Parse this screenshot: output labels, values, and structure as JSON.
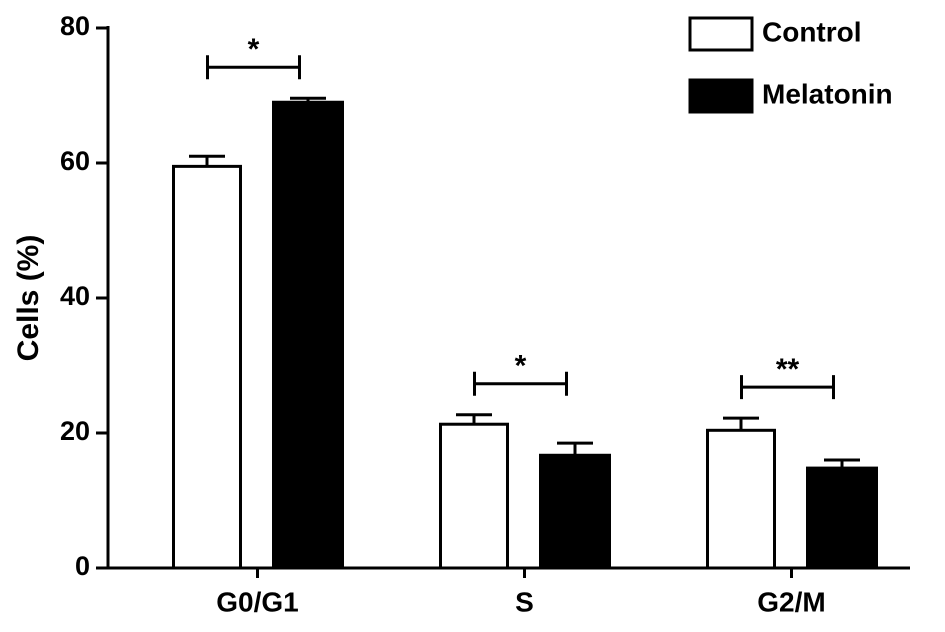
{
  "chart_data": {
    "type": "bar",
    "y_label": "Cells (%)",
    "categories": [
      "G0/G1",
      "S",
      "G2/M"
    ],
    "series": [
      {
        "name": "Control",
        "color": "#ffffff",
        "values": [
          59.5,
          21.3,
          20.4
        ],
        "errors": [
          1.5,
          1.4,
          1.8
        ]
      },
      {
        "name": "Melatonin",
        "color": "#000000",
        "values": [
          69.0,
          16.7,
          14.8
        ],
        "errors": [
          0.6,
          1.8,
          1.2
        ]
      }
    ],
    "significance": [
      "*",
      "*",
      "**"
    ],
    "ylim": [
      0,
      80
    ],
    "yticks": [
      0,
      20,
      40,
      60,
      80
    ],
    "legend": "top-right"
  }
}
